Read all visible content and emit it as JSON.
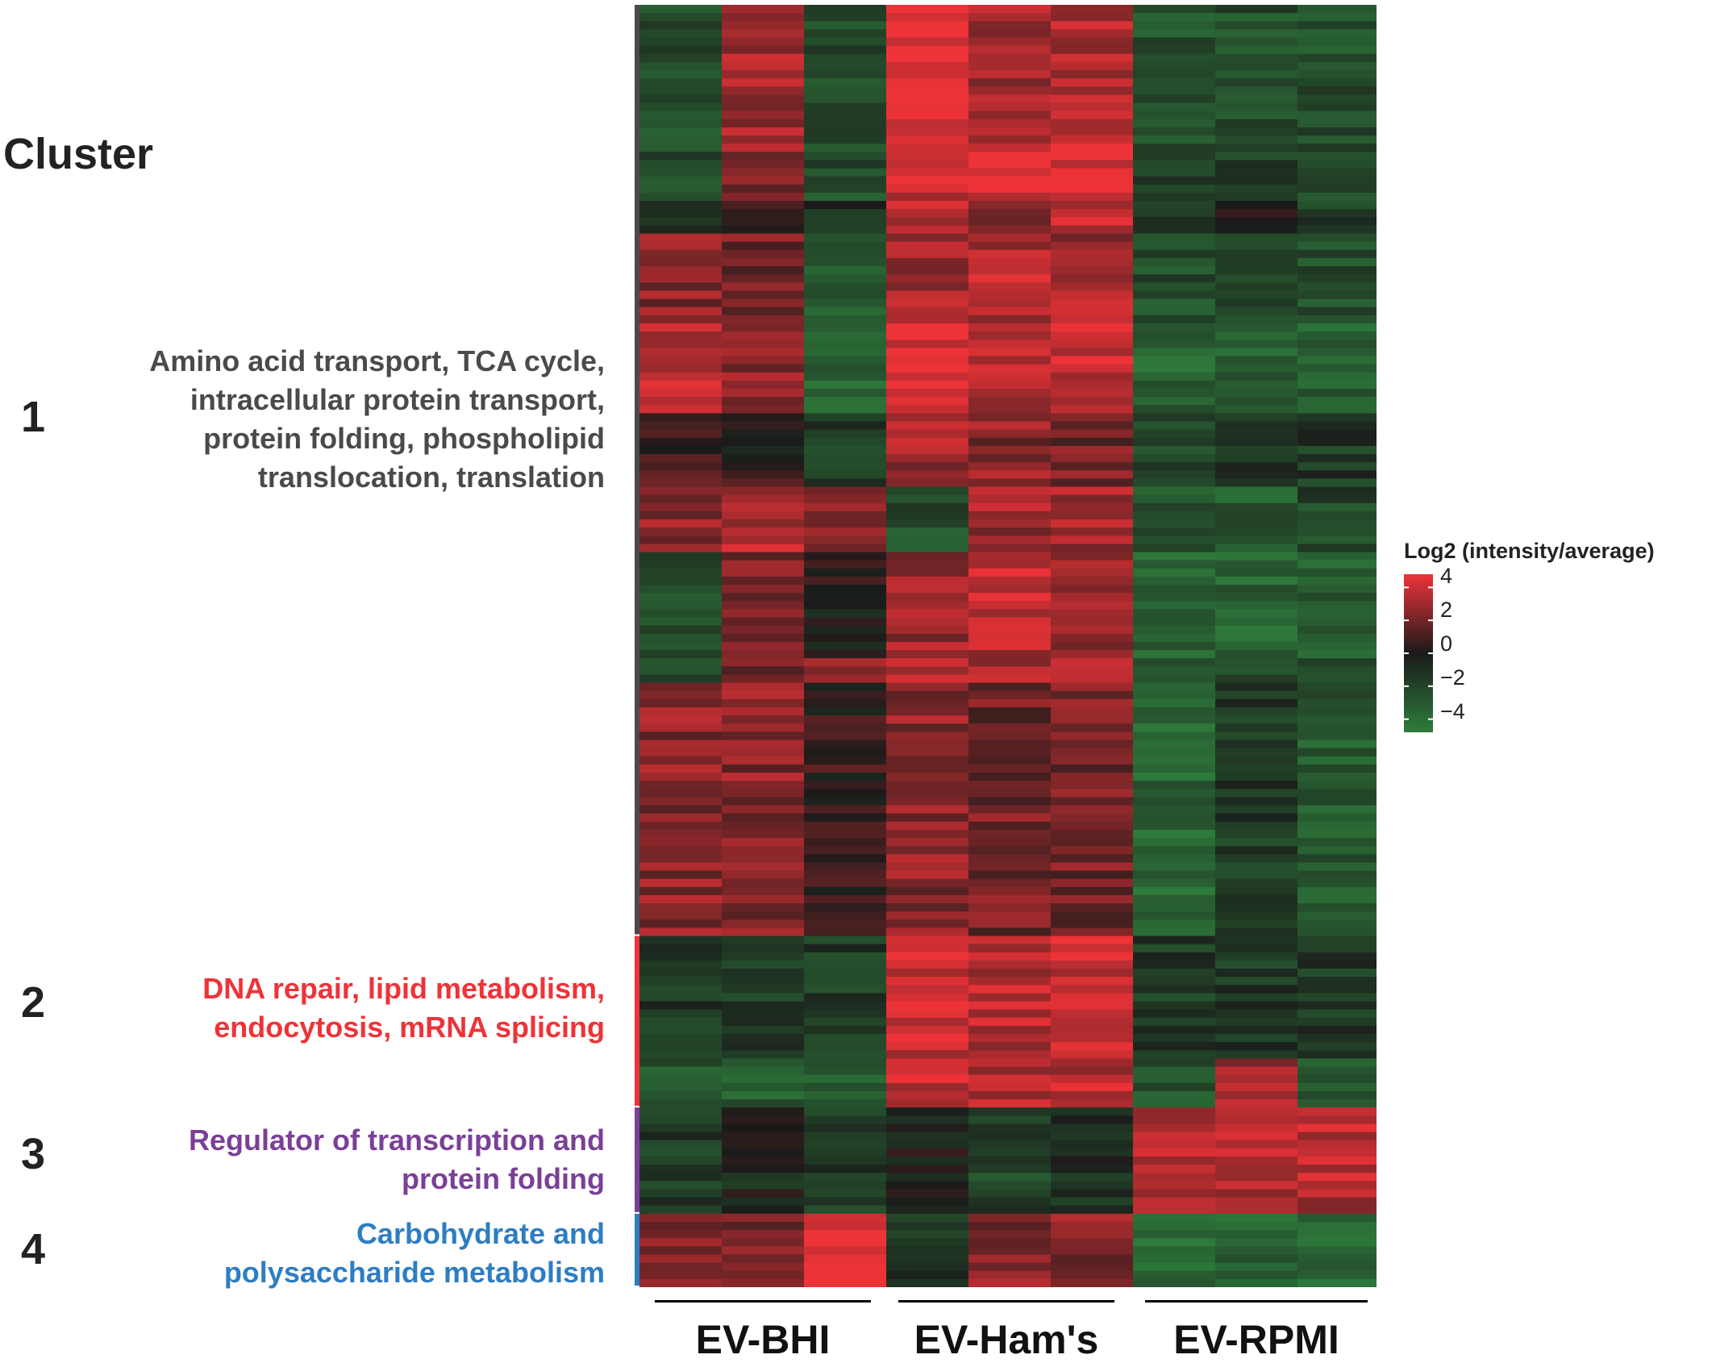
{
  "cluster_heading": "Cluster",
  "clusters": [
    {
      "number": "1",
      "description": "Amino acid transport, TCA cycle, intracellular protein transport, protein folding, phospholipid translocation, translation",
      "lines": [
        "Amino acid transport, TCA cycle,",
        "intracellular protein transport,",
        "protein folding, phospholipid",
        "translocation, translation"
      ],
      "color": "#4a4a4a"
    },
    {
      "number": "2",
      "description": "DNA repair, lipid metabolism, endocytosis, mRNA splicing",
      "lines": [
        "DNA repair, lipid metabolism,",
        "endocytosis, mRNA splicing"
      ],
      "color": "#ee3338"
    },
    {
      "number": "3",
      "description": "Regulator of transcription and protein folding",
      "lines": [
        "Regulator of transcription and",
        "protein folding"
      ],
      "color": "#7b3f98"
    },
    {
      "number": "4",
      "description": "Carbohydrate and polysaccharide metabolism",
      "lines": [
        "Carbohydrate and",
        "polysaccharide metabolism"
      ],
      "color": "#2e7dc2"
    }
  ],
  "colors": {
    "high": "#ee3338",
    "mid": "#1a1a1a",
    "low": "#2e7d3c"
  },
  "chart_data": {
    "type": "heatmap",
    "groups": [
      "EV-BHI",
      "EV-Ham's",
      "EV-RPMI"
    ],
    "legend": {
      "title": "Log2 (intensity/average)",
      "ticks": [
        4,
        2,
        0,
        -2,
        -4
      ],
      "tick_labels": [
        "4",
        "2",
        "0",
        "−2",
        "−4"
      ],
      "range": [
        -4.8,
        4.8
      ]
    },
    "cluster_sizes": [
      114,
      21,
      13,
      9
    ],
    "column_group": [
      0,
      0,
      0,
      1,
      1,
      1,
      2,
      2,
      2
    ],
    "segments": [
      {
        "cluster": 1,
        "rows": 17,
        "values": [
          -2.5,
          3.0,
          -2.5,
          4.5,
          3.0,
          3.5,
          -2.5,
          -2.5,
          -2.5
        ]
      },
      {
        "cluster": 1,
        "rows": 7,
        "values": [
          -2.0,
          2.5,
          -2.5,
          4.0,
          4.5,
          4.5,
          -2.0,
          -2.0,
          -2.0
        ]
      },
      {
        "cluster": 1,
        "rows": 4,
        "values": [
          -0.5,
          1.0,
          -1.0,
          3.5,
          2.0,
          4.0,
          -1.5,
          -0.5,
          -1.5
        ]
      },
      {
        "cluster": 1,
        "rows": 11,
        "values": [
          2.5,
          2.0,
          -3.5,
          3.0,
          3.5,
          3.0,
          -2.5,
          -2.5,
          -2.5
        ]
      },
      {
        "cluster": 1,
        "rows": 11,
        "values": [
          3.5,
          2.5,
          -3.5,
          4.5,
          3.5,
          4.0,
          -3.5,
          -3.5,
          -3.5
        ]
      },
      {
        "cluster": 1,
        "rows": 9,
        "values": [
          1.0,
          0.5,
          -1.5,
          3.0,
          2.5,
          2.0,
          -2.0,
          -1.0,
          -1.5
        ]
      },
      {
        "cluster": 1,
        "rows": 8,
        "values": [
          2.5,
          3.5,
          2.0,
          -2.5,
          3.0,
          3.0,
          -3.0,
          -3.0,
          -2.0
        ]
      },
      {
        "cluster": 1,
        "rows": 13,
        "values": [
          -2.5,
          2.5,
          0.0,
          3.0,
          3.5,
          2.5,
          -3.5,
          -3.5,
          -3.0
        ]
      },
      {
        "cluster": 1,
        "rows": 3,
        "values": [
          -2.0,
          2.0,
          3.0,
          3.0,
          3.0,
          3.0,
          -2.5,
          -2.5,
          -2.5
        ]
      },
      {
        "cluster": 1,
        "rows": 31,
        "values": [
          2.5,
          2.5,
          0.5,
          2.5,
          2.0,
          2.0,
          -3.5,
          -1.5,
          -3.0
        ]
      },
      {
        "cluster": 2,
        "rows": 15,
        "values": [
          -1.5,
          -1.5,
          -1.5,
          4.0,
          3.5,
          4.0,
          -1.5,
          -1.5,
          -1.5
        ]
      },
      {
        "cluster": 2,
        "rows": 6,
        "values": [
          -3.0,
          -3.0,
          -3.0,
          4.0,
          3.5,
          3.5,
          -2.5,
          3.0,
          -2.5
        ]
      },
      {
        "cluster": 3,
        "rows": 13,
        "values": [
          -1.5,
          -0.5,
          -1.5,
          -0.5,
          -2.0,
          -1.0,
          3.5,
          3.5,
          3.5
        ]
      },
      {
        "cluster": 4,
        "rows": 9,
        "values": [
          2.5,
          2.0,
          4.5,
          -1.5,
          2.5,
          2.5,
          -3.5,
          -3.5,
          -3.5
        ]
      }
    ]
  }
}
